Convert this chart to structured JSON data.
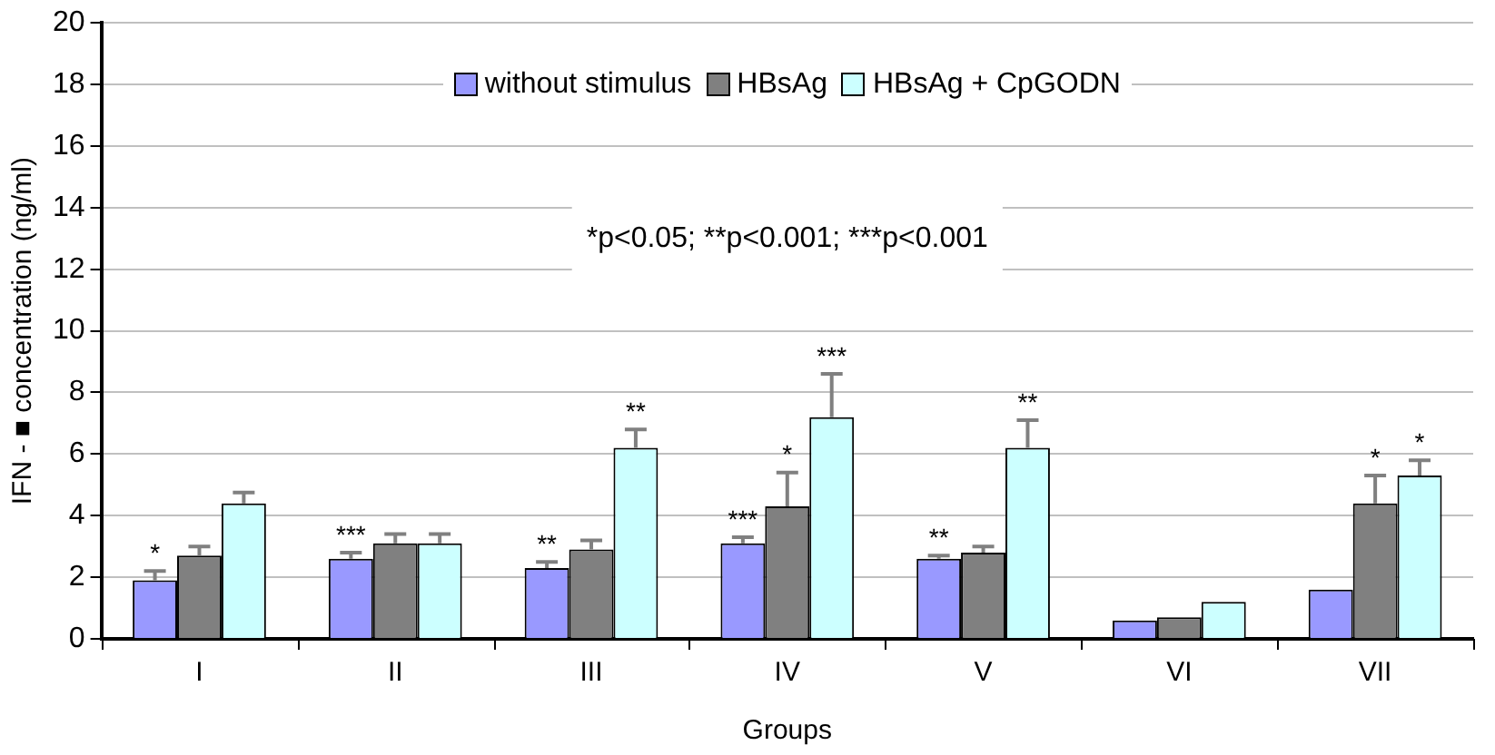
{
  "chart_data": {
    "type": "bar",
    "xlabel": "Groups",
    "ylabel": "IFN - ■ concentration (ng/ml)",
    "categories": [
      "I",
      "II",
      "III",
      "IV",
      "V",
      "VI",
      "VII"
    ],
    "series": [
      {
        "name": "without stimulus",
        "color": "#9999ff",
        "values": [
          1.9,
          2.6,
          2.3,
          3.1,
          2.6,
          0.6,
          1.6
        ],
        "value_labels": [
          "*",
          "***",
          "**",
          "***",
          "**",
          null,
          null
        ],
        "errors": [
          [
            1.9,
            2.2
          ],
          [
            2.6,
            2.8
          ],
          [
            2.3,
            2.5
          ],
          [
            3.1,
            3.3
          ],
          [
            2.6,
            2.7
          ],
          null,
          null
        ]
      },
      {
        "name": "HBsAg",
        "color": "#808080",
        "values": [
          2.7,
          3.1,
          2.9,
          4.3,
          2.8,
          0.7,
          4.4
        ],
        "value_labels": [
          null,
          null,
          null,
          "*",
          null,
          null,
          "*"
        ],
        "errors": [
          [
            2.7,
            3.0
          ],
          [
            3.1,
            3.4
          ],
          [
            2.9,
            3.2
          ],
          [
            4.3,
            5.4
          ],
          [
            2.8,
            3.0
          ],
          null,
          [
            4.4,
            5.3
          ]
        ]
      },
      {
        "name": "HBsAg + CpGODN",
        "color": "#ccffff",
        "values": [
          4.4,
          3.1,
          6.2,
          7.2,
          6.2,
          1.2,
          5.3
        ],
        "value_labels": [
          null,
          null,
          "**",
          "***",
          "**",
          null,
          "*"
        ],
        "errors": [
          [
            4.4,
            4.75
          ],
          [
            3.1,
            3.4
          ],
          [
            6.2,
            6.8
          ],
          [
            7.2,
            8.6
          ],
          [
            6.2,
            7.1
          ],
          null,
          [
            5.3,
            5.8
          ]
        ]
      }
    ],
    "ylim": [
      0,
      20
    ],
    "yticks": [
      0,
      2,
      4,
      6,
      8,
      10,
      12,
      14,
      16,
      18,
      20
    ],
    "grid": "y",
    "legend": "top",
    "annotations": [
      "*p<0.05; **p<0.001; ***p<0.001"
    ]
  }
}
